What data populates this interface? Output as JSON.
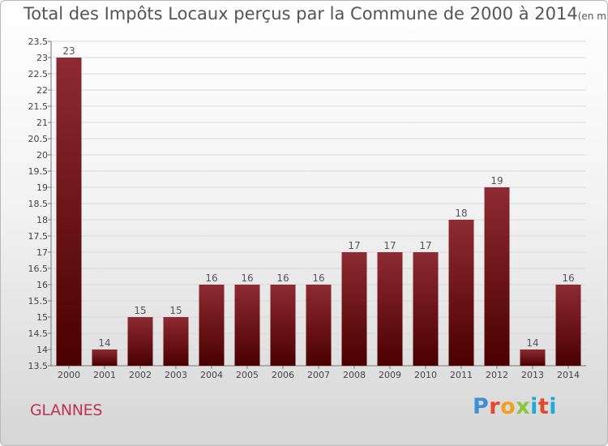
{
  "title": "Total des Impôts Locaux perçus par la Commune de 2000 à 2014",
  "unit": "(en milliers d'€)",
  "commune": "GLANNES",
  "logo": {
    "text": "Proxiti",
    "letter_colors": [
      "#3f8fd8",
      "#e0482f",
      "#f0a020",
      "#8cc63f",
      "#1fa8d8",
      "#e0482f",
      "#1fa8d8"
    ]
  },
  "chart_data": {
    "type": "bar",
    "title": "Total des Impôts Locaux perçus par la Commune de 2000 à 2014",
    "xlabel": "",
    "ylabel": "",
    "categories": [
      "2000",
      "2001",
      "2002",
      "2003",
      "2004",
      "2005",
      "2006",
      "2007",
      "2008",
      "2009",
      "2010",
      "2011",
      "2012",
      "2013",
      "2014"
    ],
    "values": [
      23,
      14,
      15,
      15,
      16,
      16,
      16,
      16,
      17,
      17,
      17,
      18,
      19,
      14,
      16
    ],
    "data_labels": [
      "23",
      "14",
      "15",
      "15",
      "16",
      "16",
      "16",
      "16",
      "17",
      "17",
      "17",
      "18",
      "19",
      "14",
      "16"
    ],
    "ylim": [
      13.5,
      23.5
    ],
    "yticks": [
      "13.5",
      "14",
      "14.5",
      "15",
      "15.5",
      "16",
      "16.5",
      "17",
      "17.5",
      "18",
      "18.5",
      "19",
      "19.5",
      "20",
      "20.5",
      "21",
      "21.5",
      "22",
      "22.5",
      "23",
      "23.5"
    ],
    "grid": true,
    "bar_color": "#8b1a1a"
  }
}
